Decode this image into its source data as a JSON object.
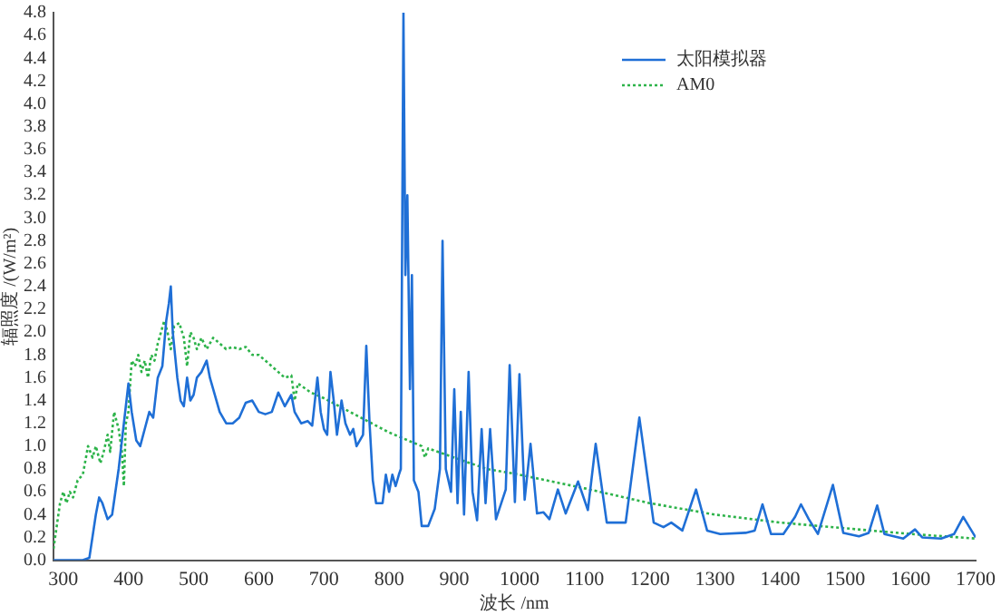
{
  "chart_data": {
    "type": "line",
    "xlabel": "波长 /nm",
    "ylabel": "辐照度 /(W/m²)",
    "xlim": [
      285,
      1700
    ],
    "xticks": [
      300,
      400,
      500,
      600,
      700,
      800,
      900,
      1000,
      1100,
      1200,
      1300,
      1400,
      1500,
      1600,
      1700
    ],
    "ylim": [
      0,
      4.8
    ],
    "yticks": [
      {
        "value": 0,
        "label": "0.0"
      },
      {
        "value": 0.2,
        "label": "0.2"
      },
      {
        "value": 0.4,
        "label": "0.4"
      },
      {
        "value": 0.6,
        "label": "0.6"
      },
      {
        "value": 0.8,
        "label": "0.8"
      },
      {
        "value": 1,
        "label": "1.0"
      },
      {
        "value": 1.2,
        "label": "1.2"
      },
      {
        "value": 1.4,
        "label": "1.4"
      },
      {
        "value": 1.6,
        "label": "1.6"
      },
      {
        "value": 1.8,
        "label": "1.8"
      },
      {
        "value": 2,
        "label": "2.0"
      },
      {
        "value": 2.2,
        "label": "2.2"
      },
      {
        "value": 2.4,
        "label": "2.4"
      },
      {
        "value": 2.6,
        "label": "2.6"
      },
      {
        "value": 2.8,
        "label": "2.8"
      },
      {
        "value": 3,
        "label": "3.0"
      },
      {
        "value": 3.2,
        "label": "3.2"
      },
      {
        "value": 3.4,
        "label": "3.4"
      },
      {
        "value": 3.6,
        "label": "3.6"
      },
      {
        "value": 3.8,
        "label": "3.8"
      },
      {
        "value": 4,
        "label": "4.0"
      },
      {
        "value": 4.2,
        "label": "4.2"
      },
      {
        "value": 4.4,
        "label": "4.4"
      },
      {
        "value": 4.6,
        "label": "4.6"
      },
      {
        "value": 4.8,
        "label": "4.8"
      }
    ],
    "grid": false,
    "legend": "top right",
    "marker": "none",
    "series": [
      {
        "name": "太阳模拟器",
        "color": "#1f6fd6",
        "line_style": "solid",
        "x": [
          285,
          300,
          330,
          340,
          350,
          355,
          360,
          368,
          375,
          385,
          395,
          400,
          405,
          412,
          418,
          425,
          432,
          438,
          445,
          452,
          458,
          462,
          465,
          468,
          475,
          480,
          485,
          490,
          495,
          500,
          505,
          512,
          520,
          525,
          530,
          540,
          550,
          560,
          570,
          580,
          590,
          600,
          610,
          620,
          630,
          640,
          650,
          655,
          665,
          675,
          682,
          690,
          695,
          700,
          705,
          710,
          715,
          720,
          727,
          733,
          740,
          745,
          750,
          760,
          765,
          770,
          775,
          780,
          790,
          795,
          800,
          805,
          810,
          815,
          818,
          822,
          825,
          828,
          832,
          835,
          838,
          845,
          850,
          860,
          870,
          878,
          882,
          887,
          895,
          900,
          905,
          910,
          915,
          922,
          928,
          935,
          942,
          948,
          955,
          964,
          979,
          985,
          993,
          1000,
          1008,
          1017,
          1027,
          1037,
          1046,
          1059,
          1071,
          1090,
          1105,
          1117,
          1134,
          1163,
          1184,
          1206,
          1221,
          1233,
          1250,
          1271,
          1288,
          1308,
          1347,
          1361,
          1373,
          1386,
          1405,
          1423,
          1432,
          1444,
          1458,
          1481,
          1497,
          1521,
          1536,
          1549,
          1560,
          1589,
          1607,
          1618,
          1647,
          1667,
          1681,
          1700
        ],
        "values": [
          0,
          0,
          0,
          0.02,
          0.4,
          0.55,
          0.5,
          0.36,
          0.4,
          0.8,
          1.3,
          1.55,
          1.3,
          1.05,
          1.0,
          1.15,
          1.3,
          1.25,
          1.6,
          1.7,
          2.1,
          2.25,
          2.4,
          2.0,
          1.6,
          1.4,
          1.35,
          1.6,
          1.4,
          1.45,
          1.6,
          1.65,
          1.75,
          1.6,
          1.5,
          1.3,
          1.2,
          1.2,
          1.25,
          1.38,
          1.4,
          1.3,
          1.28,
          1.3,
          1.47,
          1.35,
          1.45,
          1.3,
          1.2,
          1.22,
          1.18,
          1.6,
          1.3,
          1.15,
          1.1,
          1.65,
          1.4,
          1.1,
          1.4,
          1.2,
          1.1,
          1.15,
          1.0,
          1.1,
          1.88,
          1.2,
          0.7,
          0.5,
          0.5,
          0.75,
          0.6,
          0.75,
          0.65,
          0.75,
          0.8,
          4.8,
          2.5,
          3.2,
          1.5,
          2.5,
          0.7,
          0.6,
          0.3,
          0.3,
          0.45,
          0.8,
          2.8,
          0.8,
          0.6,
          1.5,
          0.5,
          1.3,
          0.4,
          1.65,
          0.6,
          0.35,
          1.15,
          0.5,
          1.15,
          0.36,
          0.62,
          1.71,
          0.51,
          1.63,
          0.53,
          1.02,
          0.41,
          0.42,
          0.36,
          0.62,
          0.41,
          0.69,
          0.44,
          1.02,
          0.33,
          0.33,
          1.25,
          0.33,
          0.29,
          0.33,
          0.26,
          0.62,
          0.26,
          0.23,
          0.24,
          0.26,
          0.49,
          0.23,
          0.23,
          0.38,
          0.49,
          0.36,
          0.23,
          0.66,
          0.24,
          0.21,
          0.24,
          0.48,
          0.23,
          0.19,
          0.27,
          0.2,
          0.19,
          0.23,
          0.38,
          0.2
        ]
      },
      {
        "name": "AM0",
        "color": "#2db34a",
        "line_style": "dotted",
        "x": [
          285,
          295,
          300,
          305,
          310,
          315,
          322,
          330,
          338,
          345,
          350,
          357,
          362,
          368,
          372,
          378,
          385,
          390,
          393,
          396,
          400,
          405,
          410,
          415,
          420,
          425,
          430,
          435,
          440,
          445,
          450,
          455,
          460,
          465,
          470,
          478,
          485,
          490,
          495,
          500,
          505,
          512,
          520,
          530,
          540,
          550,
          560,
          570,
          580,
          590,
          600,
          610,
          620,
          630,
          640,
          650,
          655,
          660,
          680,
          700,
          750,
          800,
          850,
          855,
          860,
          900,
          950,
          1000,
          1100,
          1200,
          1300,
          1400,
          1500,
          1600,
          1700
        ],
        "values": [
          0.1,
          0.5,
          0.6,
          0.5,
          0.6,
          0.55,
          0.7,
          0.75,
          1.0,
          0.9,
          1.0,
          0.85,
          0.95,
          1.1,
          0.95,
          1.3,
          1.15,
          0.95,
          0.65,
          1.2,
          1.3,
          1.75,
          1.7,
          1.8,
          1.65,
          1.75,
          1.6,
          1.8,
          1.75,
          1.9,
          2.0,
          2.1,
          2.0,
          1.85,
          2.05,
          2.08,
          1.95,
          1.7,
          2.0,
          1.95,
          1.85,
          1.95,
          1.85,
          1.95,
          1.9,
          1.85,
          1.87,
          1.85,
          1.87,
          1.8,
          1.8,
          1.75,
          1.7,
          1.65,
          1.6,
          1.62,
          1.4,
          1.55,
          1.47,
          1.42,
          1.27,
          1.12,
          1.0,
          0.9,
          0.98,
          0.9,
          0.8,
          0.75,
          0.63,
          0.5,
          0.4,
          0.33,
          0.28,
          0.23,
          0.19
        ]
      }
    ]
  }
}
